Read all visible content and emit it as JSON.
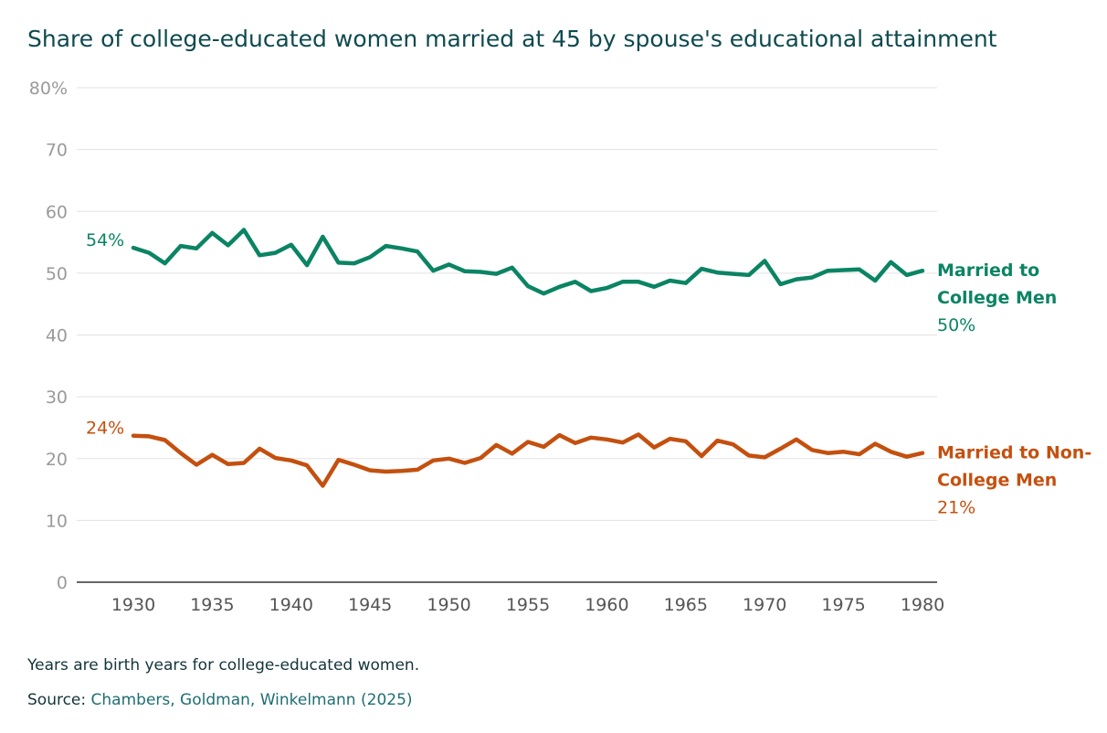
{
  "title": "Share of college-educated women married at 45 by spouse's educational attainment",
  "notes": {
    "birth_years": "Years are birth years for college-educated women.",
    "source_prefix": "Source: ",
    "source_link": "Chambers, Goldman, Winkelmann (2025)"
  },
  "colors": {
    "college": "#0b8464",
    "noncollege": "#c4500f",
    "grid": "#e2e2e2",
    "tick_label": "#9a9a9a",
    "axis": "#333333"
  },
  "chart_data": {
    "type": "line",
    "x": [
      1930,
      1931,
      1932,
      1933,
      1934,
      1935,
      1936,
      1937,
      1938,
      1939,
      1940,
      1941,
      1942,
      1943,
      1944,
      1945,
      1946,
      1947,
      1948,
      1949,
      1950,
      1951,
      1952,
      1953,
      1954,
      1955,
      1956,
      1957,
      1958,
      1959,
      1960,
      1961,
      1962,
      1963,
      1964,
      1965,
      1966,
      1967,
      1968,
      1969,
      1970,
      1971,
      1972,
      1973,
      1974,
      1975,
      1976,
      1977,
      1978,
      1979,
      1980
    ],
    "series": [
      {
        "name": "Married to College Men",
        "label_lines": [
          "Married to",
          "College Men"
        ],
        "start_label": "54%",
        "end_label": "50%",
        "color": "#0b8464",
        "values": [
          54.1,
          53.3,
          51.6,
          54.4,
          54.0,
          56.5,
          54.5,
          57.0,
          52.9,
          53.3,
          54.6,
          51.3,
          55.9,
          51.7,
          51.6,
          52.6,
          54.4,
          54.0,
          53.5,
          50.4,
          51.4,
          50.3,
          50.2,
          49.9,
          50.9,
          47.9,
          46.7,
          47.8,
          48.6,
          47.1,
          47.6,
          48.6,
          48.6,
          47.8,
          48.8,
          48.4,
          50.7,
          50.1,
          49.9,
          49.7,
          52.0,
          48.2,
          49.0,
          49.3,
          50.4,
          50.5,
          50.6,
          48.8,
          51.8,
          49.7,
          50.4
        ]
      },
      {
        "name": "Married to Non-College Men",
        "label_lines": [
          "Married to Non-",
          "College Men"
        ],
        "start_label": "24%",
        "end_label": "21%",
        "color": "#c4500f",
        "values": [
          23.7,
          23.6,
          23.0,
          20.9,
          19.0,
          20.6,
          19.1,
          19.3,
          21.6,
          20.1,
          19.7,
          18.9,
          15.6,
          19.8,
          19.0,
          18.1,
          17.9,
          18.0,
          18.2,
          19.7,
          20.0,
          19.3,
          20.1,
          22.2,
          20.8,
          22.7,
          21.9,
          23.8,
          22.5,
          23.4,
          23.1,
          22.6,
          23.9,
          21.8,
          23.2,
          22.8,
          20.4,
          22.9,
          22.3,
          20.5,
          20.2,
          21.6,
          23.1,
          21.4,
          20.9,
          21.1,
          20.7,
          22.4,
          21.1,
          20.3,
          20.9
        ]
      }
    ],
    "ylim": [
      0,
      80
    ],
    "yticks": [
      0,
      10,
      20,
      30,
      40,
      50,
      60,
      70,
      80
    ],
    "ytick_labels": [
      "0",
      "10",
      "20",
      "30",
      "40",
      "50",
      "60",
      "70",
      "80%"
    ],
    "xticks": [
      1930,
      1935,
      1940,
      1945,
      1950,
      1955,
      1960,
      1965,
      1970,
      1975,
      1980
    ],
    "xtick_labels": [
      "1930",
      "1935",
      "1940",
      "1945",
      "1950",
      "1955",
      "1960",
      "1965",
      "1970",
      "1975",
      "1980"
    ],
    "grid": true,
    "legend": "direct labels at line ends"
  }
}
